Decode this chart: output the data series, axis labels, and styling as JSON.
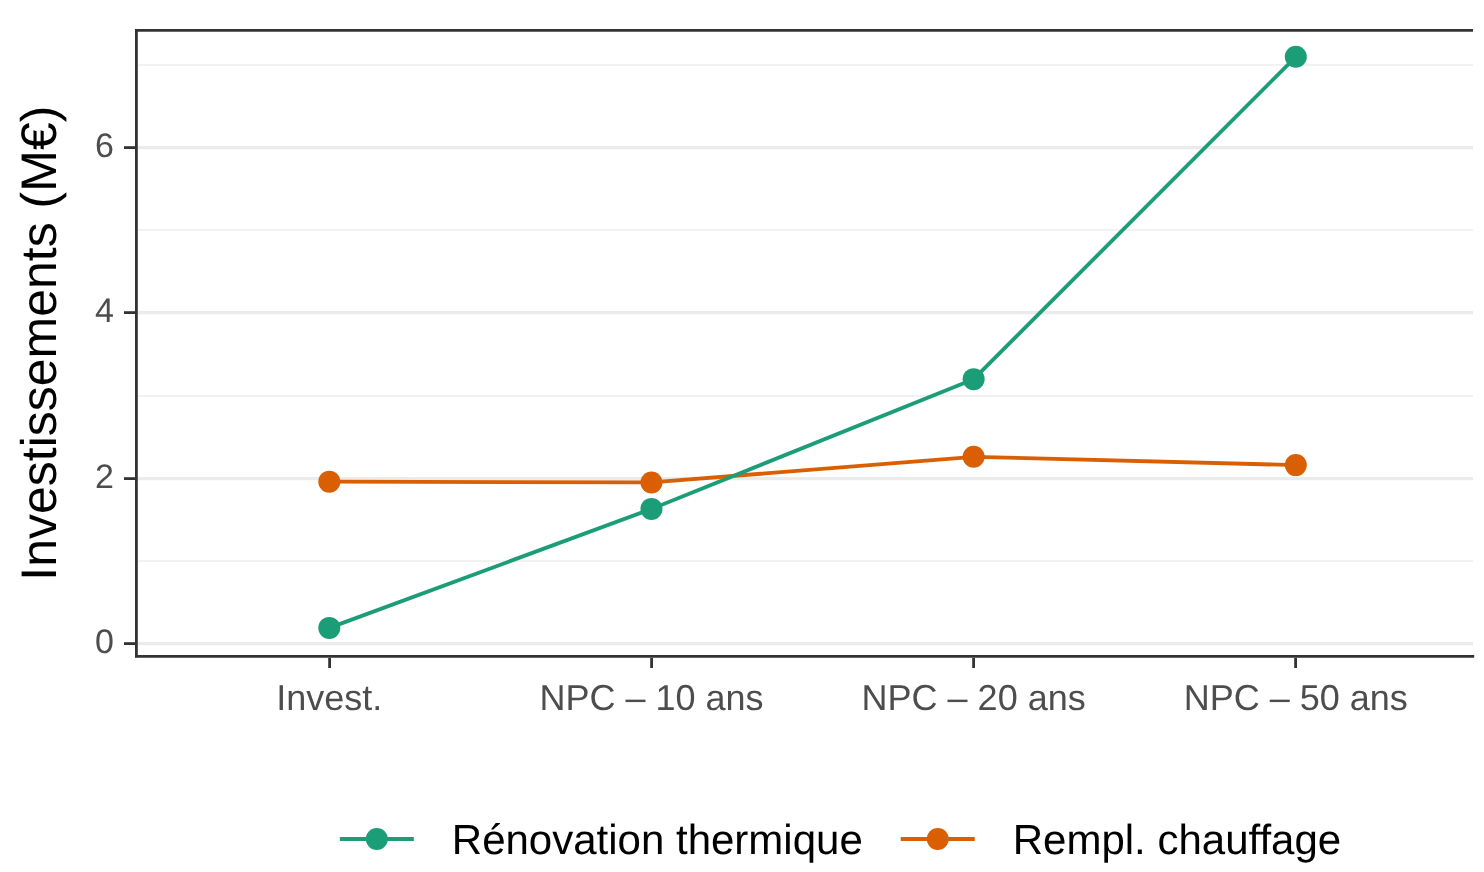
{
  "chart_data": {
    "type": "line",
    "ylabel": "Investissements (M€)",
    "categories": [
      "Invest.",
      "NPC – 10 ans",
      "NPC – 20 ans",
      "NPC – 50 ans"
    ],
    "series": [
      {
        "name": "Rénovation thermique",
        "color": "#1b9e77",
        "values": [
          0.19,
          1.63,
          3.2,
          7.1
        ]
      },
      {
        "name": "Rempl. chauffage",
        "color": "#d95f02",
        "values": [
          1.96,
          1.95,
          2.26,
          2.16
        ]
      }
    ],
    "ylim": [
      -0.15,
      7.42
    ],
    "yticks": [
      0,
      {
        "value": 1,
        "label": null
      },
      2,
      {
        "value": 3,
        "label": null
      },
      4,
      {
        "value": 5,
        "label": null
      },
      6,
      {
        "value": 7,
        "label": null
      }
    ],
    "grid": "y",
    "legend": "bottom",
    "marker": "circle",
    "line_style": "solid"
  }
}
